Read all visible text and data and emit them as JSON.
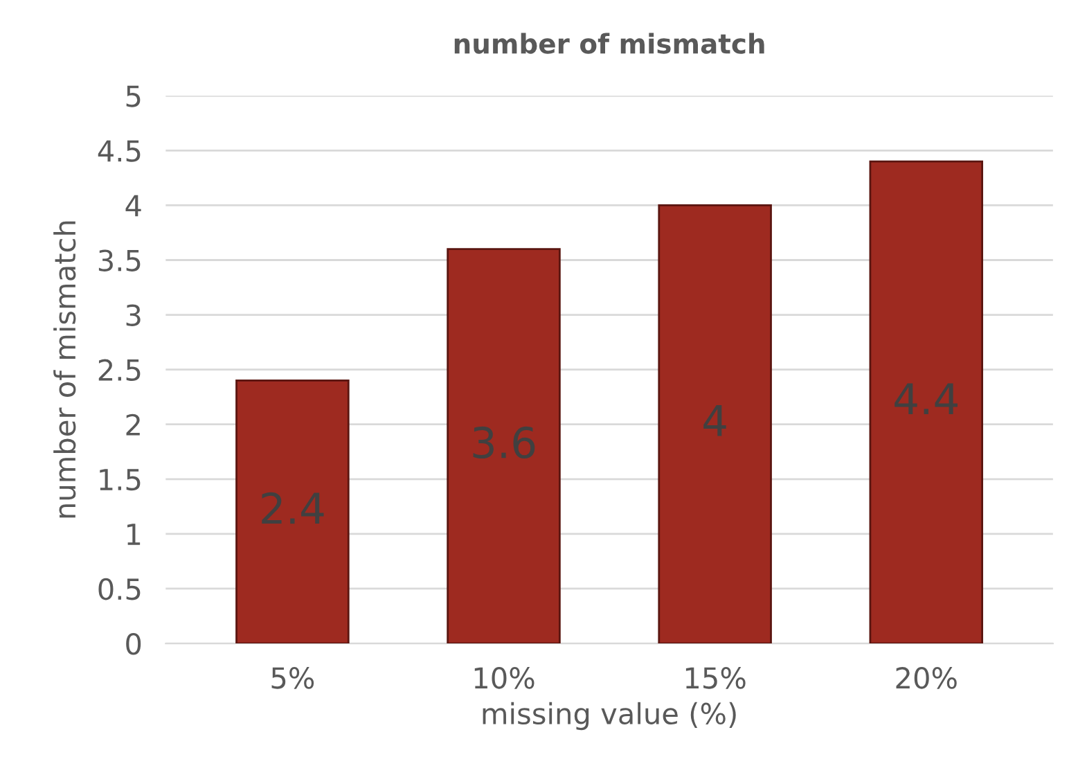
{
  "chart_data": {
    "type": "bar",
    "title": "number of mismatch",
    "xlabel": "missing value (%)",
    "ylabel": "number of mismatch",
    "categories": [
      "5%",
      "10%",
      "15%",
      "20%"
    ],
    "values": [
      2.4,
      3.6,
      4,
      4.4
    ],
    "color": "#9e2a20",
    "ylim": [
      0,
      5
    ],
    "yticks": [
      0,
      0.5,
      1,
      1.5,
      2,
      2.5,
      3,
      3.5,
      4,
      4.5,
      5
    ],
    "grid": "y",
    "data_labels": true
  }
}
